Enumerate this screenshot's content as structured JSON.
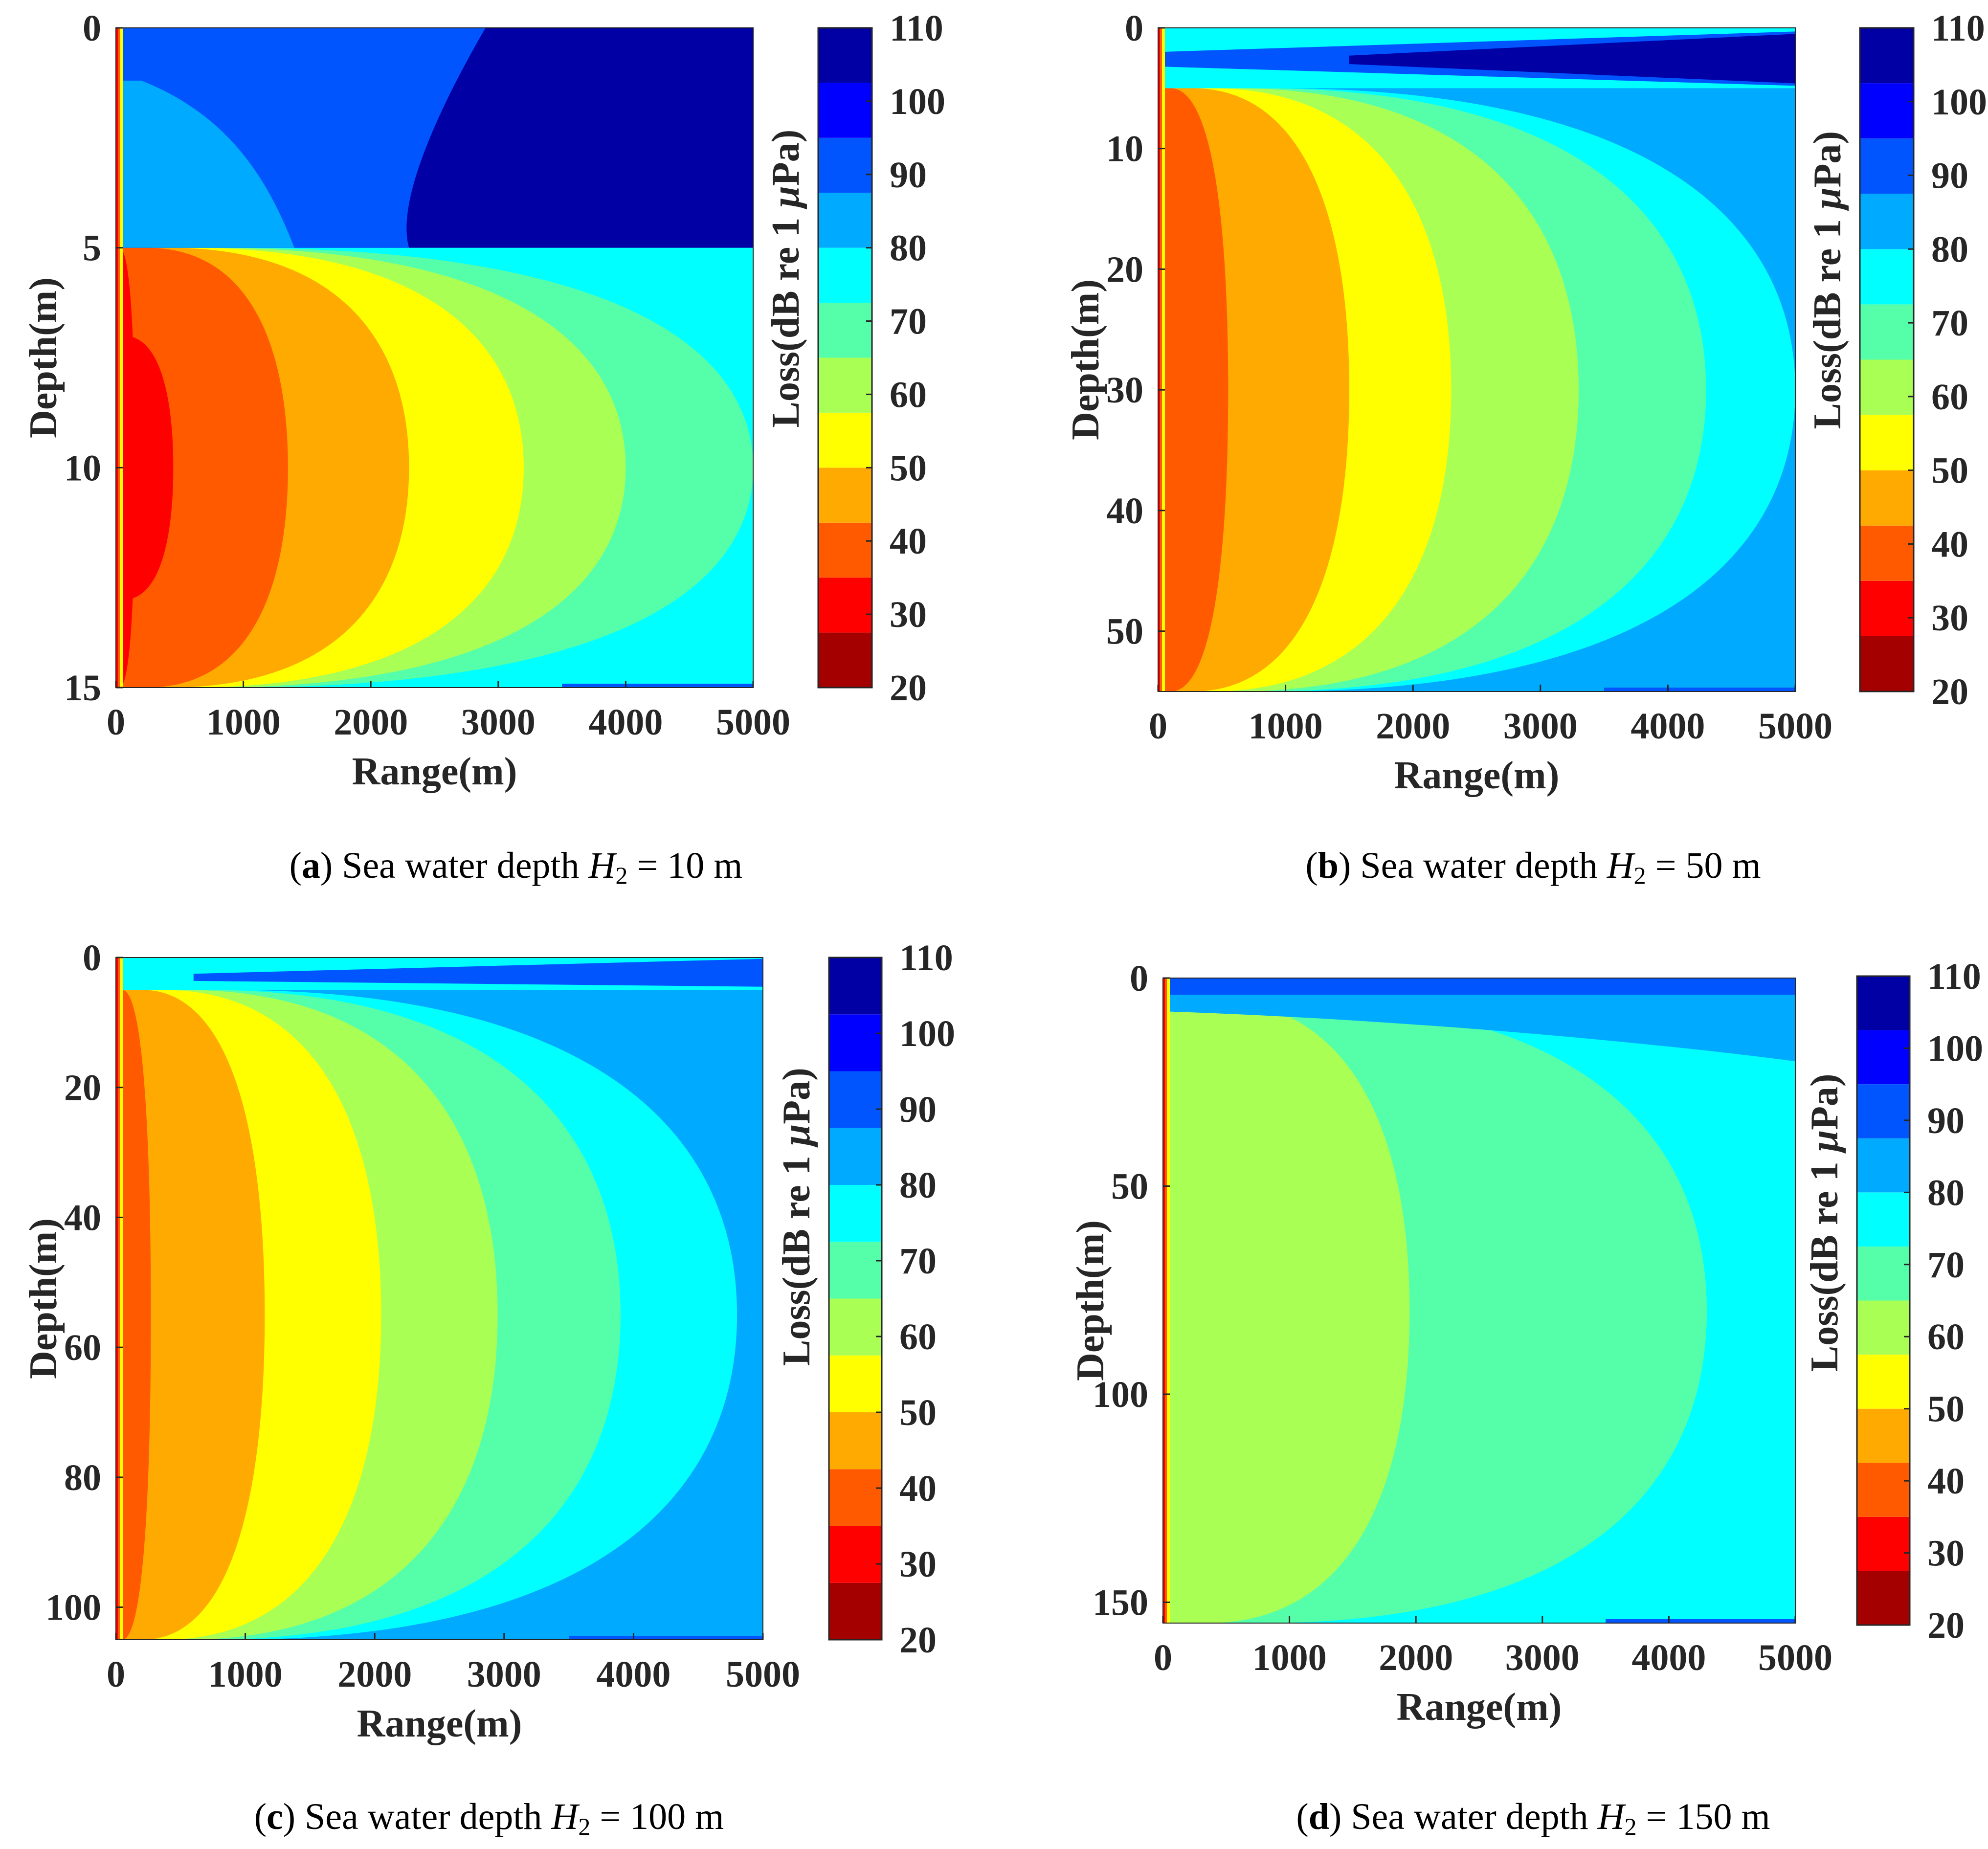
{
  "figure": {
    "panels": [
      {
        "id": "a",
        "caption": {
          "letter": "a",
          "text": "Sea water depth",
          "var": "H",
          "sub": "2",
          "value": "= 10 m"
        }
      },
      {
        "id": "b",
        "caption": {
          "letter": "b",
          "text": "Sea water depth",
          "var": "H",
          "sub": "2",
          "value": "= 50 m"
        }
      },
      {
        "id": "c",
        "caption": {
          "letter": "c",
          "text": "Sea water depth",
          "var": "H",
          "sub": "2",
          "value": "= 100 m"
        }
      },
      {
        "id": "d",
        "caption": {
          "letter": "d",
          "text": "Sea water depth",
          "var": "H",
          "sub": "2",
          "value": "= 150 m"
        }
      }
    ]
  },
  "chart_data": [
    {
      "type": "heatmap",
      "panel": "a",
      "xlabel": "Range(m)",
      "ylabel": "Depth(m)",
      "xlim": [
        0,
        5000
      ],
      "ylim": [
        0,
        15
      ],
      "xticks": [
        0,
        1000,
        2000,
        3000,
        4000,
        5000
      ],
      "yticks": [
        0,
        5,
        10,
        15
      ],
      "sea_water_depth_m": 10,
      "surface_layer_bottom_m": 5,
      "colorbar": {
        "label": "Loss(dB re 1 μPa)",
        "ticks": [
          20,
          30,
          40,
          50,
          60,
          70,
          80,
          90,
          100,
          110
        ],
        "levels": [
          {
            "from": 20,
            "to": 27.5,
            "color": "#a50000"
          },
          {
            "from": 27.5,
            "to": 35,
            "color": "#ff0000"
          },
          {
            "from": 35,
            "to": 42.5,
            "color": "#ff5a00"
          },
          {
            "from": 42.5,
            "to": 50,
            "color": "#ffaa00"
          },
          {
            "from": 50,
            "to": 57.5,
            "color": "#ffff00"
          },
          {
            "from": 57.5,
            "to": 65,
            "color": "#aaff55"
          },
          {
            "from": 65,
            "to": 72.5,
            "color": "#55ffaa"
          },
          {
            "from": 72.5,
            "to": 80,
            "color": "#00ffff"
          },
          {
            "from": 80,
            "to": 87.5,
            "color": "#00aaff"
          },
          {
            "from": 87.5,
            "to": 95,
            "color": "#0055ff"
          },
          {
            "from": 95,
            "to": 102.5,
            "color": "#0000ff"
          },
          {
            "from": 102.5,
            "to": 110,
            "color": "#0000a5"
          }
        ]
      },
      "contour_bands_range_at_source_depth_m": [
        {
          "level": 30,
          "range": 150,
          "color": "#ff0000"
        },
        {
          "level": 40,
          "range": 1350,
          "color": "#ff5a00"
        },
        {
          "level": 50,
          "range": 2300,
          "color": "#ffaa00"
        },
        {
          "level": 55,
          "range": 3200,
          "color": "#ffff00"
        },
        {
          "level": 60,
          "range": 4000,
          "color": "#aaff55"
        },
        {
          "level": 70,
          "range": 5000,
          "color": "#55ffaa"
        }
      ],
      "background_color": "#00ffff",
      "surface_layer_colors": [
        "#00aaff",
        "#0055ff",
        "#0000a5"
      ]
    },
    {
      "type": "heatmap",
      "panel": "b",
      "xlabel": "Range(m)",
      "ylabel": "Depth(m)",
      "xlim": [
        0,
        5000
      ],
      "ylim": [
        0,
        55
      ],
      "xticks": [
        0,
        1000,
        2000,
        3000,
        4000,
        5000
      ],
      "yticks": [
        0,
        10,
        20,
        30,
        40,
        50
      ],
      "sea_water_depth_m": 50,
      "surface_layer_bottom_m": 5,
      "colorbar": {
        "label": "Loss(dB re 1 μPa)",
        "ticks": [
          20,
          30,
          40,
          50,
          60,
          70,
          80,
          90,
          100,
          110
        ]
      },
      "contour_bands_range_at_source_depth_m": [
        {
          "level": 40,
          "range": 550,
          "color": "#ff5a00"
        },
        {
          "level": 50,
          "range": 1500,
          "color": "#ffaa00"
        },
        {
          "level": 55,
          "range": 2300,
          "color": "#ffff00"
        },
        {
          "level": 60,
          "range": 3300,
          "color": "#aaff55"
        },
        {
          "level": 70,
          "range": 4300,
          "color": "#55ffaa"
        },
        {
          "level": 80,
          "range": 5000,
          "color": "#00ffff"
        }
      ],
      "background_color": "#00aaff",
      "surface_layer_colors": [
        "#00ffff",
        "#0000a5",
        "#00aaff"
      ]
    },
    {
      "type": "heatmap",
      "panel": "c",
      "xlabel": "Range(m)",
      "ylabel": "Depth(m)",
      "xlim": [
        0,
        5000
      ],
      "ylim": [
        0,
        105
      ],
      "xticks": [
        0,
        1000,
        2000,
        3000,
        4000,
        5000
      ],
      "yticks": [
        0,
        20,
        40,
        60,
        80,
        100
      ],
      "sea_water_depth_m": 100,
      "surface_layer_bottom_m": 5,
      "colorbar": {
        "label": "Loss(dB re 1 μPa)",
        "ticks": [
          20,
          30,
          40,
          50,
          60,
          70,
          80,
          90,
          100,
          110
        ]
      },
      "contour_bands_range_at_source_depth_m": [
        {
          "level": 40,
          "range": 270,
          "color": "#ff5a00"
        },
        {
          "level": 50,
          "range": 1150,
          "color": "#ffaa00"
        },
        {
          "level": 55,
          "range": 2050,
          "color": "#ffff00"
        },
        {
          "level": 60,
          "range": 2950,
          "color": "#aaff55"
        },
        {
          "level": 70,
          "range": 3900,
          "color": "#55ffaa"
        },
        {
          "level": 80,
          "range": 4800,
          "color": "#00ffff"
        }
      ],
      "background_color": "#00aaff",
      "surface_layer_colors": [
        "#00ffff",
        "#0055ff"
      ]
    },
    {
      "type": "heatmap",
      "panel": "d",
      "xlabel": "Range(m)",
      "ylabel": "Depth(m)",
      "xlim": [
        0,
        5000
      ],
      "ylim": [
        0,
        155
      ],
      "xticks": [
        0,
        1000,
        2000,
        3000,
        4000,
        5000
      ],
      "yticks": [
        0,
        50,
        100,
        150
      ],
      "sea_water_depth_m": 150,
      "surface_layer_bottom_m": 5,
      "colorbar": {
        "label": "Loss(dB re 1 μPa)",
        "ticks": [
          20,
          30,
          40,
          50,
          60,
          70,
          80,
          90,
          100,
          110
        ]
      },
      "contour_bands_range_at_source_depth_m": [
        {
          "level": 60,
          "range": 1950,
          "color": "#aaff55"
        },
        {
          "level": 70,
          "range": 4300,
          "color": "#55ffaa"
        }
      ],
      "background_color": "#00ffff",
      "surface_layer_colors": [
        "#0055ff",
        "#00aaff"
      ]
    }
  ]
}
